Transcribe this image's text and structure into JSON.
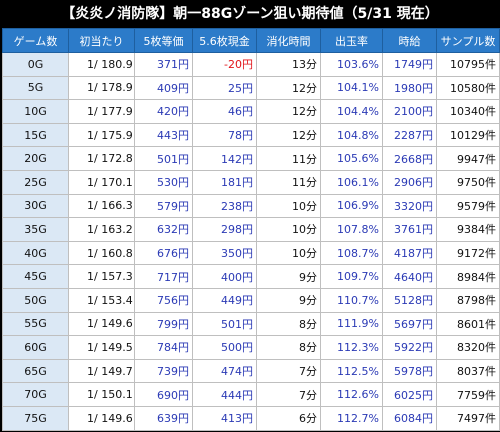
{
  "title": "【炎炎ノ消防隊】朝一88Gゾーン狙い期待値（5/31 現在）",
  "columns": [
    "ゲーム数",
    "初当たり",
    "5枚等価",
    "5.6枚現金",
    "消化時間",
    "出玉率",
    "時給",
    "サンプル数"
  ],
  "rows": [
    [
      "0G",
      "1/ 180.9",
      "371円",
      "-20円",
      "13分",
      "103.6%",
      "1749円",
      "10795件"
    ],
    [
      "5G",
      "1/ 178.9",
      "409円",
      "25円",
      "12分",
      "104.1%",
      "1980円",
      "10580件"
    ],
    [
      "10G",
      "1/ 177.9",
      "420円",
      "46円",
      "12分",
      "104.4%",
      "2100円",
      "10340件"
    ],
    [
      "15G",
      "1/ 175.9",
      "443円",
      "78円",
      "12分",
      "104.8%",
      "2287円",
      "10129件"
    ],
    [
      "20G",
      "1/ 172.8",
      "501円",
      "142円",
      "11分",
      "105.6%",
      "2668円",
      "9947件"
    ],
    [
      "25G",
      "1/ 170.1",
      "530円",
      "181円",
      "11分",
      "106.1%",
      "2906円",
      "9750件"
    ],
    [
      "30G",
      "1/ 166.3",
      "579円",
      "238円",
      "10分",
      "106.9%",
      "3320円",
      "9579件"
    ],
    [
      "35G",
      "1/ 163.2",
      "632円",
      "298円",
      "10分",
      "107.8%",
      "3761円",
      "9384件"
    ],
    [
      "40G",
      "1/ 160.8",
      "676円",
      "350円",
      "10分",
      "108.7%",
      "4187円",
      "9172件"
    ],
    [
      "45G",
      "1/ 157.3",
      "717円",
      "400円",
      "9分",
      "109.7%",
      "4640円",
      "8984件"
    ],
    [
      "50G",
      "1/ 153.4",
      "756円",
      "449円",
      "9分",
      "110.7%",
      "5128円",
      "8798件"
    ],
    [
      "55G",
      "1/ 149.6",
      "799円",
      "501円",
      "8分",
      "111.9%",
      "5697円",
      "8601件"
    ],
    [
      "60G",
      "1/ 149.5",
      "784円",
      "500円",
      "8分",
      "112.3%",
      "5922円",
      "8320件"
    ],
    [
      "65G",
      "1/ 149.7",
      "739円",
      "474円",
      "7分",
      "112.5%",
      "5978円",
      "8037件"
    ],
    [
      "70G",
      "1/ 150.1",
      "690円",
      "444円",
      "7分",
      "112.6%",
      "6025円",
      "7759件"
    ],
    [
      "75G",
      "1/ 149.6",
      "639円",
      "413円",
      "6分",
      "112.7%",
      "6084円",
      "7497件"
    ]
  ],
  "colors": {
    "header_bg": "#2c7bc9",
    "first_col_bg": "#dbe8f5",
    "value_blue": "#2b3ab5",
    "negative_red": "#e2141a"
  }
}
